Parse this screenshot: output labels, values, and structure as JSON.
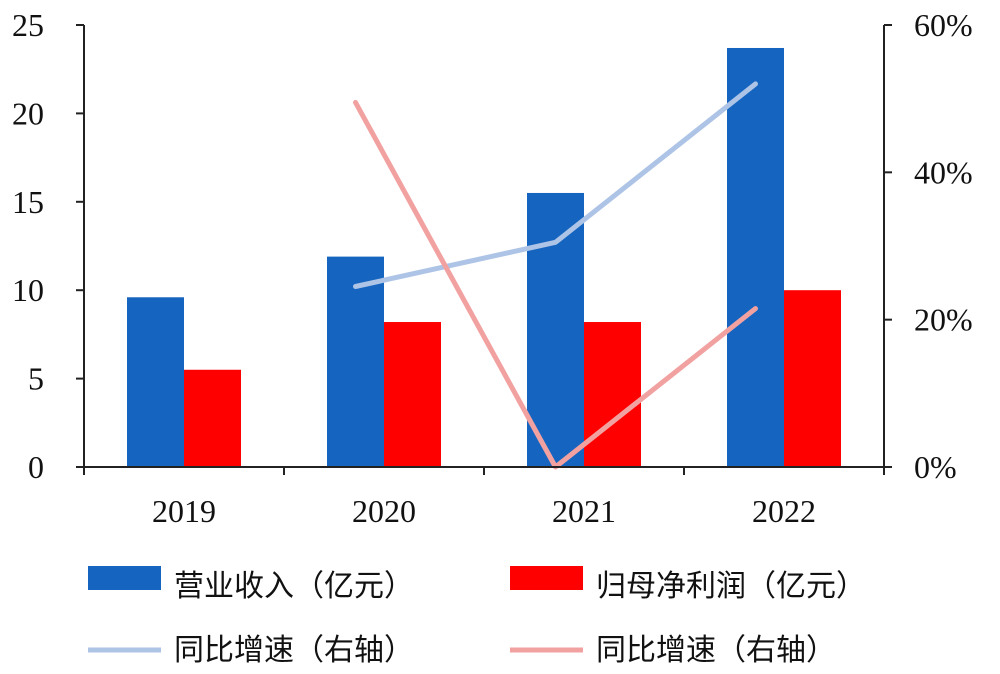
{
  "chart_data": {
    "type": "bar",
    "categories": [
      "2019",
      "2020",
      "2021",
      "2022"
    ],
    "series": [
      {
        "name": "营业收入（亿元）",
        "type": "bar",
        "axis": "left",
        "color": "#1565c0",
        "values": [
          9.6,
          11.9,
          15.5,
          23.7
        ]
      },
      {
        "name": "归母净利润（亿元）",
        "type": "bar",
        "axis": "left",
        "color": "#ff0000",
        "values": [
          5.5,
          8.2,
          8.2,
          10.0
        ]
      },
      {
        "name": "同比增速（右轴）",
        "type": "line",
        "axis": "right",
        "color": "#adc4e6",
        "values": [
          null,
          24.5,
          30.5,
          52.0
        ]
      },
      {
        "name": "同比增速（右轴）",
        "type": "line",
        "axis": "right",
        "color": "#f2a1a1",
        "values": [
          null,
          49.5,
          0.0,
          21.5
        ]
      }
    ],
    "y_left": {
      "ylim": [
        0,
        25
      ],
      "ticks": [
        "0",
        "5",
        "10",
        "15",
        "20",
        "25"
      ],
      "tick_values": [
        0,
        5,
        10,
        15,
        20,
        25
      ]
    },
    "y_right": {
      "ylim": [
        0,
        60
      ],
      "ticks": [
        "0%",
        "20%",
        "40%",
        "60%"
      ],
      "tick_values": [
        0,
        20,
        40,
        60
      ]
    },
    "legend_position": "bottom",
    "grid": false
  }
}
